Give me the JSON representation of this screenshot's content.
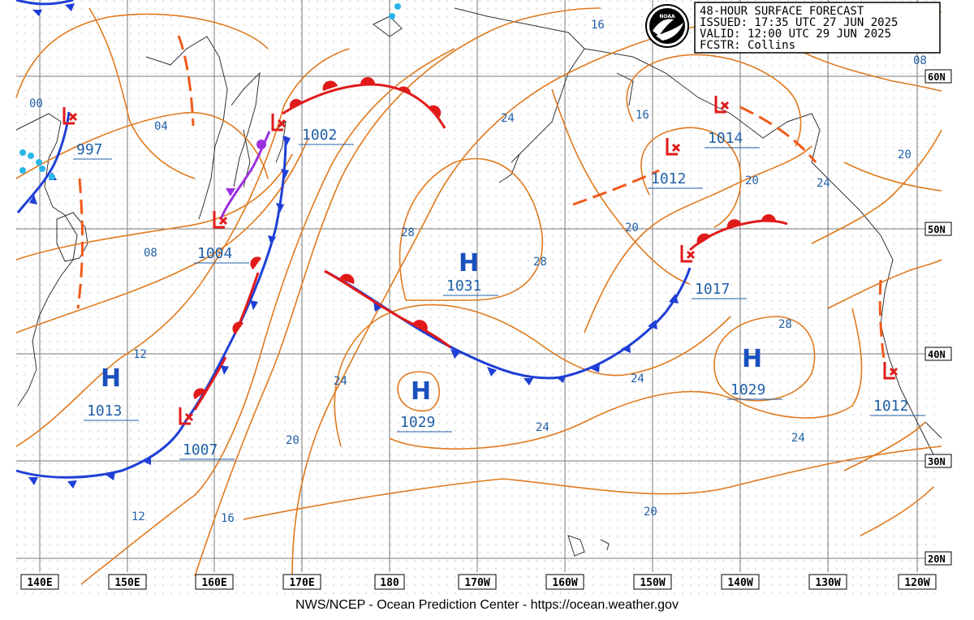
{
  "header": {
    "line1": "48-HOUR SURFACE FORECAST",
    "line2": "ISSUED: 17:35 UTC 27 JUN 2025",
    "line3": "VALID:  12:00 UTC 29 JUN 2025",
    "line4": "FCSTR:  Collins",
    "logo_text": "NOAA"
  },
  "footer": "NWS/NCEP - Ocean Prediction Center - https://ocean.weather.gov",
  "lat_labels": [
    "60N",
    "50N",
    "40N",
    "30N",
    "20N"
  ],
  "lon_labels": [
    "140E",
    "150E",
    "160E",
    "170E",
    "180",
    "170W",
    "160W",
    "150W",
    "140W",
    "130W",
    "120W"
  ],
  "pressure_centers": [
    {
      "type": "L",
      "value": "997"
    },
    {
      "type": "L",
      "value": "1002"
    },
    {
      "type": "L",
      "value": "1004"
    },
    {
      "type": "L",
      "value": "1012"
    },
    {
      "type": "L",
      "value": "1014"
    },
    {
      "type": "L",
      "value": "1017"
    },
    {
      "type": "L",
      "value": "1012"
    },
    {
      "type": "L",
      "value": "1007"
    },
    {
      "type": "H",
      "value": "1031"
    },
    {
      "type": "H",
      "value": "1029"
    },
    {
      "type": "H",
      "value": "1029"
    },
    {
      "type": "H",
      "value": "1013"
    }
  ],
  "isobar_labels": [
    "00",
    "04",
    "08",
    "12",
    "12",
    "16",
    "16",
    "16",
    "20",
    "20",
    "20",
    "20",
    "20",
    "24",
    "24",
    "24",
    "24",
    "24",
    "24",
    "28",
    "28",
    "28",
    "08"
  ],
  "colors": {
    "isobar": "#e07a1f",
    "cold_front": "#1f3fd6",
    "warm_front": "#e11a1a",
    "occluded_front": "#9a2fe0",
    "trough": "#f05a1a",
    "grid": "#7a7a7a",
    "coast": "#333333",
    "label": "#1f5fa8"
  }
}
